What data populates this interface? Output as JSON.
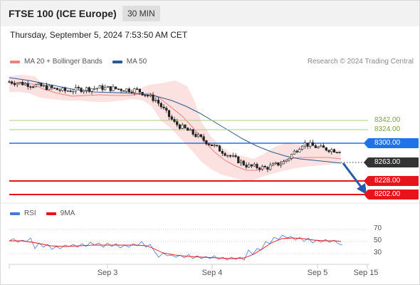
{
  "header": {
    "instrument": "FTSE 100 (ICE Europe)",
    "timeframe": "30 MIN"
  },
  "timestamp": "Thursday, September 5, 2024 7:53:50 AM CET",
  "legend": {
    "main": [
      {
        "label": "MA 20 + Bollinger Bands",
        "color": "#f08080"
      },
      {
        "label": "MA 50",
        "color": "#2d5a8e"
      }
    ],
    "rsi": [
      {
        "label": "RSI",
        "color": "#4a78d8"
      },
      {
        "label": "9MA",
        "color": "#e8141b"
      }
    ]
  },
  "credit": "Research © 2024 Trading Central",
  "levels": {
    "green_1": "8342.00",
    "green_2": "8324.00",
    "pivot": "8300.00",
    "last": "8263.00",
    "support_1": "8228.00",
    "support_2": "8202.00"
  },
  "colors": {
    "resistance": "#7aa33a",
    "pivot": "#1e73e8",
    "support": "#e8141b",
    "last": "#333333",
    "band_fill": "#fbd9d9"
  },
  "rsi_ticks": [
    "70",
    "50",
    "30"
  ],
  "x_labels": [
    "Sep 3",
    "Sep 4",
    "Sep 5",
    "Sep 15"
  ],
  "chart_data": {
    "type": "candlestick",
    "y_unit": "index points",
    "ylim": [
      8190,
      8405
    ],
    "x_range": [
      "Sep 2",
      "Sep 15"
    ],
    "price_path": [
      [
        "Sep 2 08:00",
        8380
      ],
      [
        "Sep 2 12:00",
        8376
      ],
      [
        "Sep 2 16:00",
        8371
      ],
      [
        "Sep 2 20:00",
        8365
      ],
      [
        "Sep 3 00:00",
        8368
      ],
      [
        "Sep 3 04:00",
        8370
      ],
      [
        "Sep 3 08:00",
        8368
      ],
      [
        "Sep 3 12:00",
        8366
      ],
      [
        "Sep 3 16:00",
        8350
      ],
      [
        "Sep 3 20:00",
        8313
      ],
      [
        "Sep 4 00:00",
        8296
      ],
      [
        "Sep 4 04:00",
        8278
      ],
      [
        "Sep 4 08:00",
        8260
      ],
      [
        "Sep 4 12:00",
        8243
      ],
      [
        "Sep 4 16:00",
        8240
      ],
      [
        "Sep 4 20:00",
        8250
      ],
      [
        "Sep 5 00:00",
        8280
      ],
      [
        "Sep 5 04:00",
        8272
      ],
      [
        "Sep 5 08:00",
        8268
      ]
    ],
    "projection": {
      "from": 8263,
      "to": 8202,
      "direction": "down"
    },
    "rsi_range": [
      15,
      85
    ],
    "rsi_levels": [
      70,
      50,
      30
    ]
  }
}
